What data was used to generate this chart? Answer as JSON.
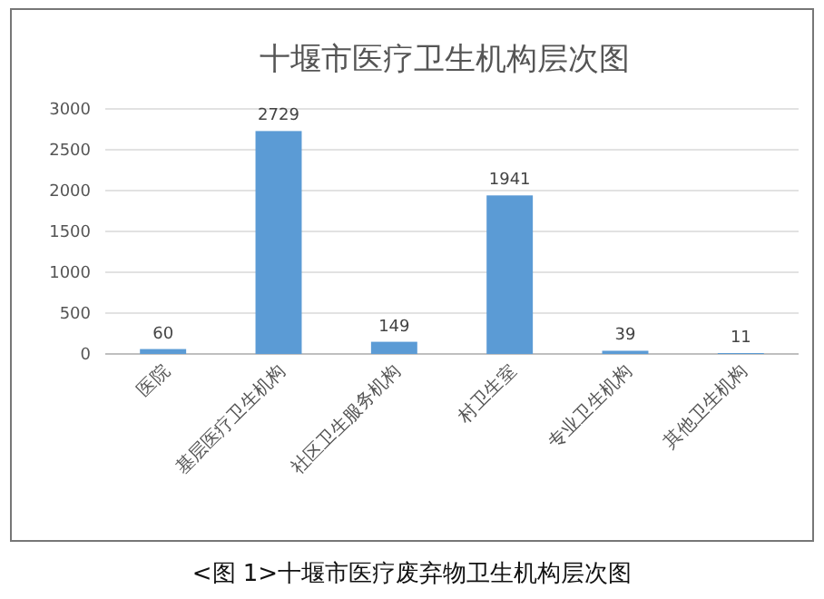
{
  "chart_data": {
    "type": "bar",
    "title": "十堰市医疗卫生机构层次图",
    "categories": [
      "医院",
      "基层医疗卫生机构",
      "社区卫生服务机构",
      "村卫生室",
      "专业卫生机构",
      "其他卫生机构"
    ],
    "values": [
      60,
      2729,
      149,
      1941,
      39,
      11
    ],
    "color": "#5b9bd5",
    "data_labels": true,
    "ylim": [
      0,
      3000
    ],
    "yticks": [
      0,
      500,
      1000,
      1500,
      2000,
      2500,
      3000
    ],
    "grid": "y",
    "annotations": [
      "<图 1>十堰市医疗废弃物卫生机构层次图"
    ]
  }
}
